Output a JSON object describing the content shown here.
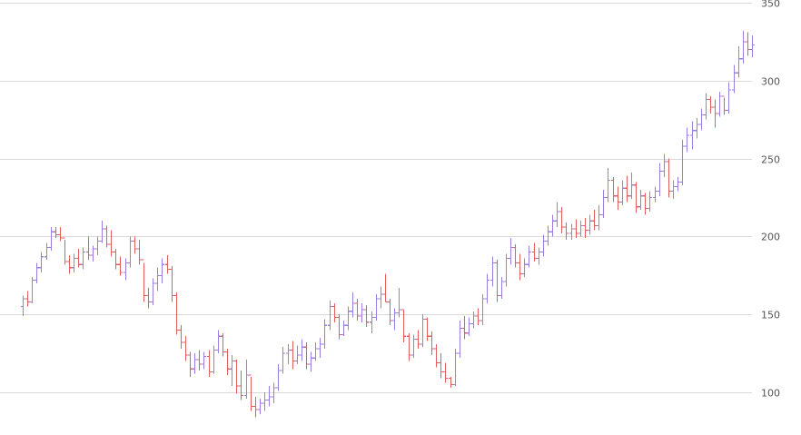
{
  "chart_data": {
    "type": "ohlc",
    "title": "",
    "xlabel": "",
    "ylabel": "",
    "ylim": [
      78,
      350
    ],
    "y_ticks": [
      "100",
      "150",
      "200",
      "250",
      "300",
      "350"
    ],
    "y_tick_values": [
      100,
      150,
      200,
      250,
      300,
      350
    ],
    "grid": true,
    "legend": "none",
    "colors": {
      "up": "#9b7fe0",
      "down": "#e06060",
      "grid": "#d9d9d9",
      "axis_text": "#555555"
    },
    "series": [
      {
        "bars": [
          {
            "o": 155,
            "h": 162,
            "l": 149,
            "c": 160
          },
          {
            "o": 160,
            "h": 165,
            "l": 155,
            "c": 158
          },
          {
            "o": 158,
            "h": 174,
            "l": 157,
            "c": 172
          },
          {
            "o": 172,
            "h": 183,
            "l": 170,
            "c": 180
          },
          {
            "o": 180,
            "h": 190,
            "l": 177,
            "c": 187
          },
          {
            "o": 187,
            "h": 196,
            "l": 185,
            "c": 193
          },
          {
            "o": 193,
            "h": 206,
            "l": 191,
            "c": 203
          },
          {
            "o": 203,
            "h": 206,
            "l": 199,
            "c": 201
          },
          {
            "o": 201,
            "h": 206,
            "l": 197,
            "c": 199
          },
          {
            "o": 199,
            "h": 198,
            "l": 182,
            "c": 184
          },
          {
            "o": 184,
            "h": 188,
            "l": 176,
            "c": 180
          },
          {
            "o": 180,
            "h": 189,
            "l": 177,
            "c": 186
          },
          {
            "o": 186,
            "h": 192,
            "l": 180,
            "c": 182
          },
          {
            "o": 182,
            "h": 193,
            "l": 179,
            "c": 190
          },
          {
            "o": 190,
            "h": 200,
            "l": 185,
            "c": 188
          },
          {
            "o": 188,
            "h": 194,
            "l": 184,
            "c": 192
          },
          {
            "o": 192,
            "h": 200,
            "l": 188,
            "c": 197
          },
          {
            "o": 197,
            "h": 210,
            "l": 196,
            "c": 205
          },
          {
            "o": 205,
            "h": 207,
            "l": 193,
            "c": 195
          },
          {
            "o": 195,
            "h": 204,
            "l": 187,
            "c": 190
          },
          {
            "o": 190,
            "h": 192,
            "l": 179,
            "c": 182
          },
          {
            "o": 182,
            "h": 187,
            "l": 175,
            "c": 177
          },
          {
            "o": 177,
            "h": 186,
            "l": 172,
            "c": 183
          },
          {
            "o": 183,
            "h": 200,
            "l": 180,
            "c": 197
          },
          {
            "o": 197,
            "h": 200,
            "l": 189,
            "c": 192
          },
          {
            "o": 192,
            "h": 198,
            "l": 182,
            "c": 185
          },
          {
            "o": 185,
            "h": 183,
            "l": 158,
            "c": 162
          },
          {
            "o": 162,
            "h": 167,
            "l": 154,
            "c": 158
          },
          {
            "o": 158,
            "h": 173,
            "l": 156,
            "c": 170
          },
          {
            "o": 170,
            "h": 180,
            "l": 165,
            "c": 175
          },
          {
            "o": 175,
            "h": 186,
            "l": 170,
            "c": 182
          },
          {
            "o": 182,
            "h": 188,
            "l": 176,
            "c": 179
          },
          {
            "o": 179,
            "h": 181,
            "l": 158,
            "c": 162
          },
          {
            "o": 162,
            "h": 164,
            "l": 137,
            "c": 140
          },
          {
            "o": 140,
            "h": 143,
            "l": 128,
            "c": 132
          },
          {
            "o": 132,
            "h": 136,
            "l": 120,
            "c": 124
          },
          {
            "o": 124,
            "h": 126,
            "l": 110,
            "c": 115
          },
          {
            "o": 115,
            "h": 125,
            "l": 112,
            "c": 121
          },
          {
            "o": 121,
            "h": 127,
            "l": 114,
            "c": 118
          },
          {
            "o": 118,
            "h": 126,
            "l": 115,
            "c": 123
          },
          {
            "o": 123,
            "h": 127,
            "l": 110,
            "c": 113
          },
          {
            "o": 113,
            "h": 130,
            "l": 112,
            "c": 127
          },
          {
            "o": 127,
            "h": 140,
            "l": 125,
            "c": 136
          },
          {
            "o": 136,
            "h": 138,
            "l": 123,
            "c": 126
          },
          {
            "o": 126,
            "h": 128,
            "l": 111,
            "c": 115
          },
          {
            "o": 115,
            "h": 124,
            "l": 104,
            "c": 120
          },
          {
            "o": 120,
            "h": 121,
            "l": 99,
            "c": 104
          },
          {
            "o": 104,
            "h": 114,
            "l": 95,
            "c": 98
          },
          {
            "o": 98,
            "h": 121,
            "l": 96,
            "c": 111
          },
          {
            "o": 111,
            "h": 110,
            "l": 88,
            "c": 91
          },
          {
            "o": 91,
            "h": 97,
            "l": 84,
            "c": 89
          },
          {
            "o": 89,
            "h": 96,
            "l": 86,
            "c": 93
          },
          {
            "o": 93,
            "h": 100,
            "l": 88,
            "c": 95
          },
          {
            "o": 95,
            "h": 104,
            "l": 91,
            "c": 97
          },
          {
            "o": 97,
            "h": 106,
            "l": 93,
            "c": 103
          },
          {
            "o": 103,
            "h": 118,
            "l": 101,
            "c": 114
          },
          {
            "o": 114,
            "h": 129,
            "l": 112,
            "c": 125
          },
          {
            "o": 125,
            "h": 131,
            "l": 118,
            "c": 127
          },
          {
            "o": 127,
            "h": 133,
            "l": 115,
            "c": 120
          },
          {
            "o": 120,
            "h": 130,
            "l": 118,
            "c": 124
          },
          {
            "o": 124,
            "h": 134,
            "l": 120,
            "c": 129
          },
          {
            "o": 129,
            "h": 132,
            "l": 115,
            "c": 118
          },
          {
            "o": 118,
            "h": 126,
            "l": 113,
            "c": 122
          },
          {
            "o": 122,
            "h": 132,
            "l": 120,
            "c": 128
          },
          {
            "o": 128,
            "h": 135,
            "l": 122,
            "c": 131
          },
          {
            "o": 131,
            "h": 147,
            "l": 128,
            "c": 143
          },
          {
            "o": 143,
            "h": 159,
            "l": 140,
            "c": 155
          },
          {
            "o": 155,
            "h": 157,
            "l": 145,
            "c": 148
          },
          {
            "o": 148,
            "h": 150,
            "l": 134,
            "c": 137
          },
          {
            "o": 137,
            "h": 146,
            "l": 136,
            "c": 143
          },
          {
            "o": 143,
            "h": 155,
            "l": 140,
            "c": 152
          },
          {
            "o": 152,
            "h": 164,
            "l": 148,
            "c": 157
          },
          {
            "o": 157,
            "h": 160,
            "l": 146,
            "c": 149
          },
          {
            "o": 149,
            "h": 157,
            "l": 145,
            "c": 153
          },
          {
            "o": 153,
            "h": 156,
            "l": 142,
            "c": 145
          },
          {
            "o": 145,
            "h": 152,
            "l": 138,
            "c": 148
          },
          {
            "o": 148,
            "h": 163,
            "l": 146,
            "c": 160
          },
          {
            "o": 160,
            "h": 168,
            "l": 154,
            "c": 163
          },
          {
            "o": 163,
            "h": 176,
            "l": 158,
            "c": 158
          },
          {
            "o": 158,
            "h": 160,
            "l": 143,
            "c": 146
          },
          {
            "o": 146,
            "h": 154,
            "l": 140,
            "c": 151
          },
          {
            "o": 151,
            "h": 167,
            "l": 148,
            "c": 153
          },
          {
            "o": 153,
            "h": 153,
            "l": 132,
            "c": 136
          },
          {
            "o": 136,
            "h": 138,
            "l": 120,
            "c": 124
          },
          {
            "o": 124,
            "h": 137,
            "l": 122,
            "c": 134
          },
          {
            "o": 134,
            "h": 140,
            "l": 128,
            "c": 131
          },
          {
            "o": 131,
            "h": 150,
            "l": 129,
            "c": 147
          },
          {
            "o": 147,
            "h": 148,
            "l": 133,
            "c": 136
          },
          {
            "o": 136,
            "h": 139,
            "l": 124,
            "c": 128
          },
          {
            "o": 128,
            "h": 131,
            "l": 116,
            "c": 119
          },
          {
            "o": 119,
            "h": 125,
            "l": 109,
            "c": 113
          },
          {
            "o": 113,
            "h": 119,
            "l": 106,
            "c": 109
          },
          {
            "o": 109,
            "h": 110,
            "l": 103,
            "c": 105
          },
          {
            "o": 105,
            "h": 128,
            "l": 104,
            "c": 125
          },
          {
            "o": 125,
            "h": 146,
            "l": 122,
            "c": 141
          },
          {
            "o": 141,
            "h": 149,
            "l": 134,
            "c": 138
          },
          {
            "o": 138,
            "h": 148,
            "l": 136,
            "c": 144
          },
          {
            "o": 144,
            "h": 152,
            "l": 141,
            "c": 149
          },
          {
            "o": 149,
            "h": 154,
            "l": 143,
            "c": 146
          },
          {
            "o": 146,
            "h": 163,
            "l": 143,
            "c": 160
          },
          {
            "o": 160,
            "h": 176,
            "l": 157,
            "c": 172
          },
          {
            "o": 172,
            "h": 187,
            "l": 168,
            "c": 183
          },
          {
            "o": 183,
            "h": 185,
            "l": 158,
            "c": 162
          },
          {
            "o": 162,
            "h": 174,
            "l": 160,
            "c": 171
          },
          {
            "o": 171,
            "h": 189,
            "l": 168,
            "c": 186
          },
          {
            "o": 186,
            "h": 199,
            "l": 182,
            "c": 193
          },
          {
            "o": 193,
            "h": 195,
            "l": 180,
            "c": 183
          },
          {
            "o": 183,
            "h": 189,
            "l": 172,
            "c": 176
          },
          {
            "o": 176,
            "h": 186,
            "l": 174,
            "c": 182
          },
          {
            "o": 182,
            "h": 194,
            "l": 180,
            "c": 190
          },
          {
            "o": 190,
            "h": 196,
            "l": 184,
            "c": 186
          },
          {
            "o": 186,
            "h": 193,
            "l": 182,
            "c": 190
          },
          {
            "o": 190,
            "h": 201,
            "l": 187,
            "c": 197
          },
          {
            "o": 197,
            "h": 207,
            "l": 194,
            "c": 203
          },
          {
            "o": 203,
            "h": 214,
            "l": 200,
            "c": 210
          },
          {
            "o": 210,
            "h": 222,
            "l": 206,
            "c": 216
          },
          {
            "o": 216,
            "h": 219,
            "l": 202,
            "c": 206
          },
          {
            "o": 206,
            "h": 209,
            "l": 198,
            "c": 202
          },
          {
            "o": 202,
            "h": 208,
            "l": 198,
            "c": 205
          },
          {
            "o": 205,
            "h": 211,
            "l": 199,
            "c": 202
          },
          {
            "o": 202,
            "h": 210,
            "l": 200,
            "c": 207
          },
          {
            "o": 207,
            "h": 212,
            "l": 199,
            "c": 204
          },
          {
            "o": 204,
            "h": 214,
            "l": 201,
            "c": 210
          },
          {
            "o": 210,
            "h": 217,
            "l": 204,
            "c": 207
          },
          {
            "o": 207,
            "h": 220,
            "l": 204,
            "c": 214
          },
          {
            "o": 214,
            "h": 230,
            "l": 212,
            "c": 225
          },
          {
            "o": 225,
            "h": 244,
            "l": 222,
            "c": 236
          },
          {
            "o": 236,
            "h": 238,
            "l": 222,
            "c": 226
          },
          {
            "o": 226,
            "h": 232,
            "l": 217,
            "c": 222
          },
          {
            "o": 222,
            "h": 236,
            "l": 220,
            "c": 231
          },
          {
            "o": 231,
            "h": 239,
            "l": 222,
            "c": 226
          },
          {
            "o": 226,
            "h": 241,
            "l": 224,
            "c": 233
          },
          {
            "o": 233,
            "h": 235,
            "l": 215,
            "c": 219
          },
          {
            "o": 219,
            "h": 230,
            "l": 217,
            "c": 226
          },
          {
            "o": 226,
            "h": 228,
            "l": 214,
            "c": 218
          },
          {
            "o": 218,
            "h": 229,
            "l": 216,
            "c": 225
          },
          {
            "o": 225,
            "h": 232,
            "l": 222,
            "c": 229
          },
          {
            "o": 229,
            "h": 247,
            "l": 226,
            "c": 242
          },
          {
            "o": 242,
            "h": 253,
            "l": 238,
            "c": 248
          },
          {
            "o": 248,
            "h": 250,
            "l": 225,
            "c": 229
          },
          {
            "o": 229,
            "h": 236,
            "l": 224,
            "c": 232
          },
          {
            "o": 232,
            "h": 238,
            "l": 229,
            "c": 235
          },
          {
            "o": 235,
            "h": 262,
            "l": 233,
            "c": 258
          },
          {
            "o": 258,
            "h": 270,
            "l": 254,
            "c": 265
          },
          {
            "o": 265,
            "h": 274,
            "l": 256,
            "c": 268
          },
          {
            "o": 268,
            "h": 276,
            "l": 263,
            "c": 272
          },
          {
            "o": 272,
            "h": 282,
            "l": 268,
            "c": 278
          },
          {
            "o": 278,
            "h": 292,
            "l": 275,
            "c": 288
          },
          {
            "o": 288,
            "h": 290,
            "l": 279,
            "c": 283
          },
          {
            "o": 283,
            "h": 288,
            "l": 270,
            "c": 279
          },
          {
            "o": 279,
            "h": 293,
            "l": 277,
            "c": 290
          },
          {
            "o": 290,
            "h": 289,
            "l": 278,
            "c": 281
          },
          {
            "o": 281,
            "h": 299,
            "l": 279,
            "c": 294
          },
          {
            "o": 294,
            "h": 310,
            "l": 292,
            "c": 305
          },
          {
            "o": 305,
            "h": 322,
            "l": 302,
            "c": 314
          },
          {
            "o": 314,
            "h": 332,
            "l": 311,
            "c": 325
          },
          {
            "o": 325,
            "h": 331,
            "l": 316,
            "c": 320
          },
          {
            "o": 320,
            "h": 329,
            "l": 315,
            "c": 323
          }
        ]
      }
    ]
  }
}
